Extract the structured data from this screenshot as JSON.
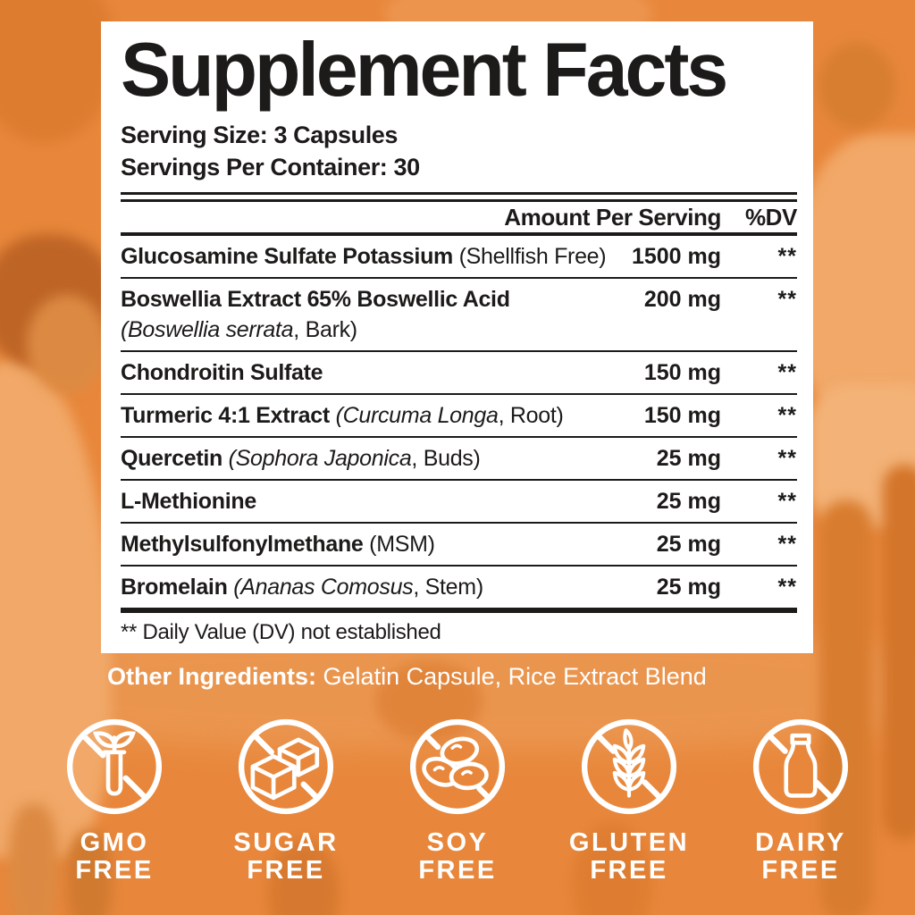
{
  "colors": {
    "background_orange": "#E8873B",
    "panel_white": "#FFFFFF",
    "text_black": "#1D1B1A",
    "icon_white": "#FFFFFF"
  },
  "panel": {
    "title": "Supplement Facts",
    "serving_size": "Serving Size: 3 Capsules",
    "servings_per_container": "Servings Per Container: 30",
    "header": {
      "amount": "Amount Per Serving",
      "dv": "%DV"
    },
    "rows": [
      {
        "name_parts": [
          {
            "t": "Glucosamine Sulfate Potassium",
            "s": "b"
          },
          {
            "t": " (Shellfish Free)",
            "s": "r"
          }
        ],
        "amount": "1500 mg",
        "dv": "**"
      },
      {
        "name_parts": [
          {
            "t": "Boswellia Extract 65% Boswellic Acid",
            "s": "b"
          }
        ],
        "line2_parts": [
          {
            "t": "(Boswellia serrata",
            "s": "i"
          },
          {
            "t": ", Bark)",
            "s": "r"
          }
        ],
        "amount": "200 mg",
        "dv": "**"
      },
      {
        "name_parts": [
          {
            "t": "Chondroitin Sulfate",
            "s": "b"
          }
        ],
        "amount": "150 mg",
        "dv": "**"
      },
      {
        "name_parts": [
          {
            "t": "Turmeric 4:1 Extract",
            "s": "b"
          },
          {
            "t": " ",
            "s": "r"
          },
          {
            "t": "(Curcuma Longa",
            "s": "i"
          },
          {
            "t": ", Root)",
            "s": "r"
          }
        ],
        "amount": "150 mg",
        "dv": "**"
      },
      {
        "name_parts": [
          {
            "t": "Quercetin",
            "s": "b"
          },
          {
            "t": " ",
            "s": "r"
          },
          {
            "t": "(Sophora Japonica",
            "s": "i"
          },
          {
            "t": ", Buds)",
            "s": "r"
          }
        ],
        "amount": "25 mg",
        "dv": "**"
      },
      {
        "name_parts": [
          {
            "t": "L-Methionine",
            "s": "b"
          }
        ],
        "amount": "25 mg",
        "dv": "**"
      },
      {
        "name_parts": [
          {
            "t": "Methylsulfonylmethane",
            "s": "b"
          },
          {
            "t": " (MSM)",
            "s": "r"
          }
        ],
        "amount": "25 mg",
        "dv": "**"
      },
      {
        "name_parts": [
          {
            "t": "Bromelain",
            "s": "b"
          },
          {
            "t": " ",
            "s": "r"
          },
          {
            "t": "(Ananas Comosus",
            "s": "i"
          },
          {
            "t": ", Stem)",
            "s": "r"
          }
        ],
        "amount": "25 mg",
        "dv": "**"
      }
    ],
    "footnote": "** Daily Value (DV) not established"
  },
  "other_ingredients": {
    "label": "Other Ingredients:",
    "value": " Gelatin Capsule, Rice Extract Blend"
  },
  "badges": [
    {
      "icon": "gmo-icon",
      "label_lines": [
        "GMO",
        "FREE"
      ]
    },
    {
      "icon": "sugar-cubes-icon",
      "label_lines": [
        "SUGAR",
        "FREE"
      ]
    },
    {
      "icon": "soybeans-icon",
      "label_lines": [
        "SOY",
        "FREE"
      ]
    },
    {
      "icon": "wheat-icon",
      "label_lines": [
        "GLUTEN",
        "FREE"
      ]
    },
    {
      "icon": "milk-bottle-icon",
      "label_lines": [
        "DAIRY",
        "FREE"
      ]
    }
  ]
}
